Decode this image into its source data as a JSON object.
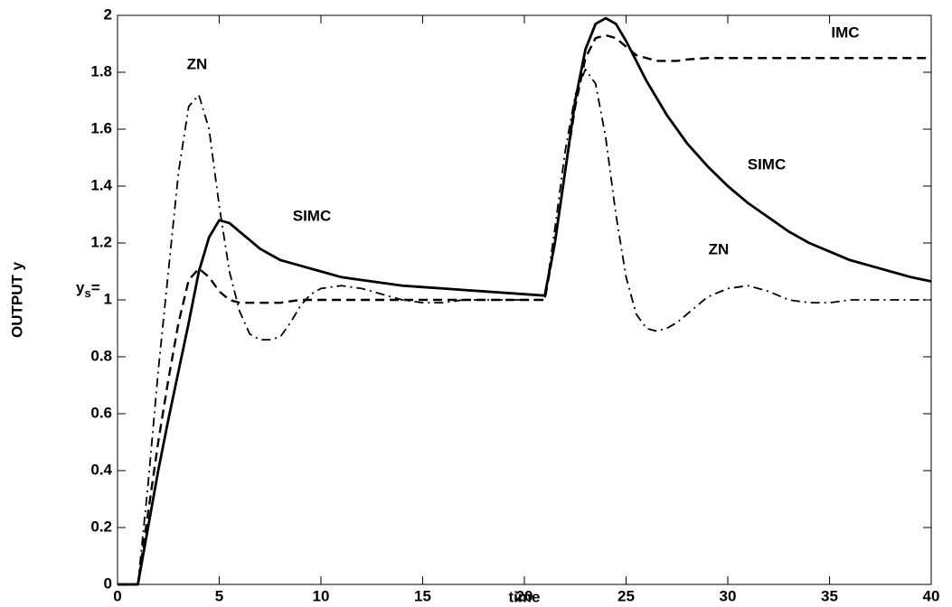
{
  "chart_data": {
    "type": "line",
    "xlabel": "time",
    "ylabel": "OUTPUT y",
    "setpoint_label": {
      "main": "y",
      "sub": "s",
      "tail": "="
    },
    "xlim": [
      0,
      40
    ],
    "ylim": [
      0,
      2
    ],
    "xticks": [
      0,
      5,
      10,
      15,
      20,
      25,
      30,
      35,
      40
    ],
    "yticks": [
      0,
      0.2,
      0.4,
      0.6,
      0.8,
      1,
      1.2,
      1.4,
      1.6,
      1.8,
      2
    ],
    "grid": false,
    "x": [
      0,
      0.5,
      1,
      1.5,
      2,
      2.5,
      3,
      3.5,
      4,
      4.5,
      5,
      5.5,
      6,
      6.5,
      7,
      7.5,
      8,
      8.5,
      9,
      9.5,
      10,
      11,
      12,
      13,
      14,
      15,
      16,
      17,
      18,
      19,
      20,
      21,
      21.5,
      22,
      22.5,
      23,
      23.5,
      24,
      24.5,
      25,
      25.5,
      26,
      26.5,
      27,
      27.5,
      28,
      29,
      30,
      31,
      32,
      33,
      34,
      35,
      36,
      37,
      38,
      39,
      40
    ],
    "series": [
      {
        "name": "SIMC",
        "color": "#000000",
        "style": "solid",
        "values": [
          0,
          0,
          0,
          0.2,
          0.4,
          0.58,
          0.75,
          0.92,
          1.1,
          1.22,
          1.28,
          1.27,
          1.24,
          1.21,
          1.18,
          1.16,
          1.14,
          1.13,
          1.12,
          1.11,
          1.1,
          1.08,
          1.07,
          1.06,
          1.05,
          1.045,
          1.04,
          1.035,
          1.03,
          1.025,
          1.02,
          1.015,
          1.2,
          1.45,
          1.7,
          1.88,
          1.97,
          1.99,
          1.97,
          1.91,
          1.84,
          1.77,
          1.71,
          1.65,
          1.6,
          1.55,
          1.47,
          1.4,
          1.34,
          1.29,
          1.24,
          1.2,
          1.17,
          1.14,
          1.12,
          1.1,
          1.08,
          1.065
        ]
      },
      {
        "name": "IMC",
        "color": "#000000",
        "style": "dashed",
        "values": [
          0,
          0,
          0,
          0.25,
          0.5,
          0.72,
          0.92,
          1.07,
          1.11,
          1.08,
          1.03,
          1.0,
          0.99,
          0.99,
          0.99,
          0.99,
          0.99,
          0.995,
          1,
          1,
          1,
          1,
          1,
          1,
          1,
          1,
          1,
          1,
          1,
          1,
          1,
          1,
          1.2,
          1.45,
          1.68,
          1.85,
          1.92,
          1.93,
          1.92,
          1.89,
          1.86,
          1.85,
          1.84,
          1.84,
          1.84,
          1.845,
          1.85,
          1.85,
          1.85,
          1.85,
          1.85,
          1.85,
          1.85,
          1.85,
          1.85,
          1.85,
          1.85,
          1.85
        ]
      },
      {
        "name": "ZN",
        "color": "#000000",
        "style": "dashdot",
        "values": [
          0,
          0,
          0,
          0.35,
          0.75,
          1.1,
          1.45,
          1.68,
          1.72,
          1.6,
          1.33,
          1.1,
          0.96,
          0.88,
          0.86,
          0.86,
          0.87,
          0.92,
          0.98,
          1.02,
          1.04,
          1.05,
          1.04,
          1.02,
          1.0,
          0.99,
          0.99,
          1.0,
          1.0,
          1.0,
          1.0,
          1.0,
          1.25,
          1.52,
          1.72,
          1.81,
          1.76,
          1.57,
          1.3,
          1.08,
          0.95,
          0.9,
          0.89,
          0.9,
          0.92,
          0.95,
          1.01,
          1.04,
          1.05,
          1.03,
          1.0,
          0.99,
          0.99,
          1.0,
          1.0,
          1.0,
          1.0,
          1.0
        ]
      }
    ]
  }
}
